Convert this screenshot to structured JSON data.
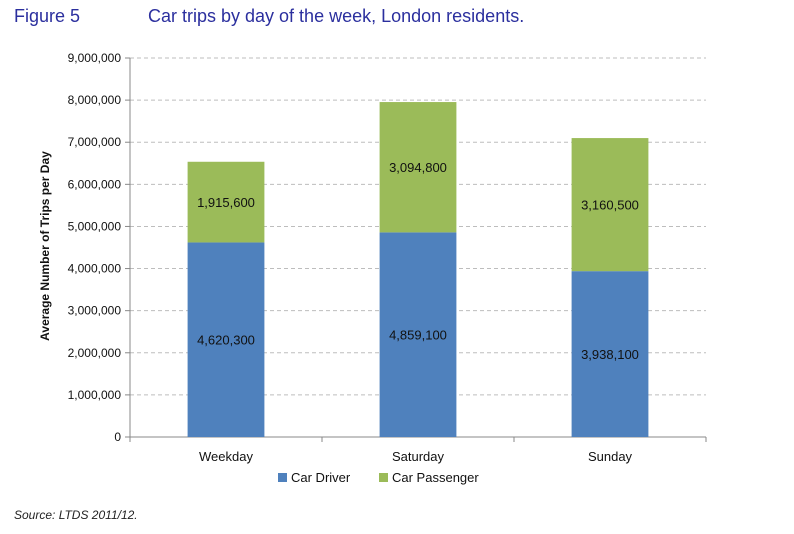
{
  "figure_label": "Figure 5",
  "source_note": "Source: LTDS 2011/12.",
  "chart_data": {
    "type": "bar",
    "stacked": true,
    "title": "Car trips by day of the week, London residents.",
    "ylabel": "Average Number of Trips per Day",
    "xlabel": "",
    "categories": [
      "Weekday",
      "Saturday",
      "Sunday"
    ],
    "series": [
      {
        "name": "Car Driver",
        "color": "#4f81bd",
        "values": [
          4620300,
          4859100,
          3938100
        ],
        "labels": [
          "4,620,300",
          "4,859,100",
          "3,938,100"
        ]
      },
      {
        "name": "Car Passenger",
        "color": "#9bbb59",
        "values": [
          1915600,
          3094800,
          3160500
        ],
        "labels": [
          "1,915,600",
          "3,094,800",
          "3,160,500"
        ]
      }
    ],
    "ylim": [
      0,
      9000000
    ],
    "yticks": [
      0,
      1000000,
      2000000,
      3000000,
      4000000,
      5000000,
      6000000,
      7000000,
      8000000,
      9000000
    ],
    "ytick_labels": [
      "0",
      "1,000,000",
      "2,000,000",
      "3,000,000",
      "4,000,000",
      "5,000,000",
      "6,000,000",
      "7,000,000",
      "8,000,000",
      "9,000,000"
    ],
    "grid": true,
    "legend_position": "bottom"
  }
}
